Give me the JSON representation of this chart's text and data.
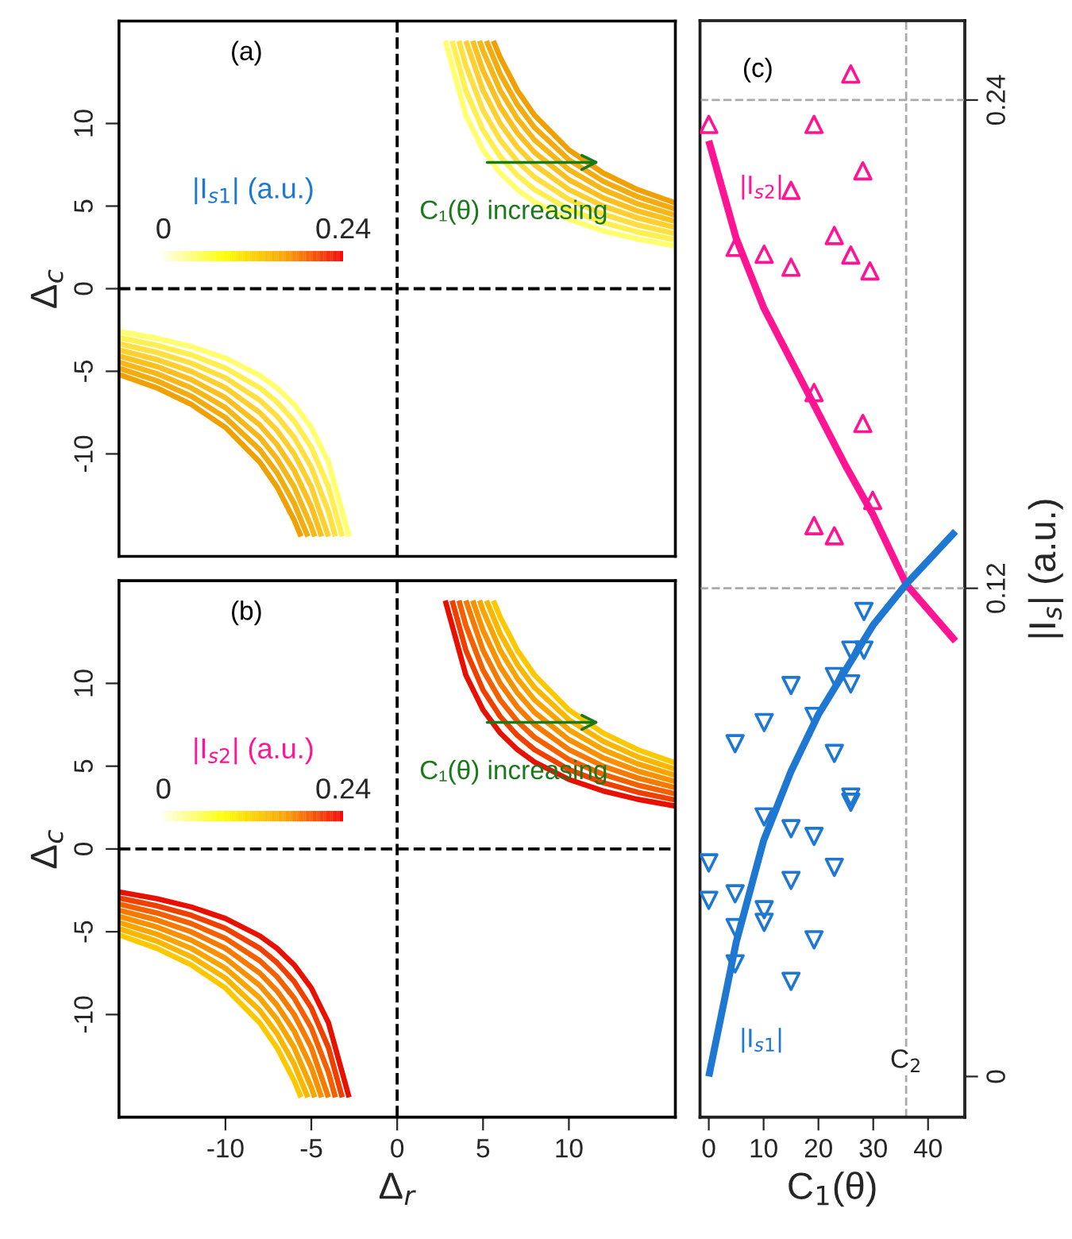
{
  "chart_data": [
    {
      "type": "line",
      "ylabel": "Δ$_{c}$",
      "xlim": [
        -16.2,
        16.2
      ],
      "ylim": [
        -16.2,
        16.2
      ],
      "yticks": [
        -10,
        -5,
        0,
        5,
        10
      ],
      "tick_labels": "y",
      "grid": false,
      "legend": false,
      "clabel": "|I$_{s1}$| (a.u.)",
      "clim": [
        0,
        0.24
      ],
      "cticks": [
        0,
        0.24
      ],
      "annotations": [
        "(a)",
        "C₁(θ) increasing"
      ],
      "ref_lines": [
        {
          "axis": "x",
          "value": 0,
          "color": "#000000",
          "line_style": "dashed"
        },
        {
          "axis": "y",
          "value": 0,
          "color": "#000000",
          "line_style": "dashed"
        }
      ],
      "series": [
        {
          "color": "#ffff70",
          "x": [
            2.8,
            4,
            5,
            6,
            7,
            8,
            10,
            12,
            14,
            16.2
          ],
          "values": [
            15,
            10.5,
            8.4,
            7,
            6,
            5.25,
            4.2,
            3.5,
            3,
            2.59
          ]
        },
        {
          "color": "#fff050",
          "x": [
            3.2,
            4,
            5,
            6,
            7,
            8,
            10,
            12,
            14,
            16.2
          ],
          "values": [
            15,
            12,
            9.6,
            8,
            6.86,
            6,
            4.8,
            4,
            3.43,
            2.96
          ]
        },
        {
          "color": "#ffe040",
          "x": [
            3.6,
            4,
            5,
            6,
            7,
            8,
            10,
            12,
            14,
            16.2
          ],
          "values": [
            15,
            13.5,
            10.8,
            9,
            7.71,
            6.75,
            5.4,
            4.5,
            3.86,
            3.33
          ]
        },
        {
          "color": "#fdd030",
          "x": [
            4,
            5,
            6,
            7,
            8,
            10,
            12,
            14,
            16.2
          ],
          "values": [
            15,
            12,
            10,
            8.57,
            7.5,
            6,
            5,
            4.29,
            3.7
          ]
        },
        {
          "color": "#f9c020",
          "x": [
            4.4,
            5,
            6,
            7,
            8,
            10,
            12,
            14,
            16.2
          ],
          "values": [
            15,
            13.2,
            11,
            9.43,
            8.25,
            6.6,
            5.5,
            4.71,
            4.07
          ]
        },
        {
          "color": "#f6b818",
          "x": [
            4.8,
            5,
            6,
            7,
            8,
            10,
            12,
            14,
            16.2
          ],
          "values": [
            15,
            14.4,
            12,
            10.29,
            9,
            7.2,
            6,
            5.14,
            4.44
          ]
        },
        {
          "color": "#f3ac10",
          "x": [
            5.2,
            6,
            7,
            8,
            10,
            12,
            14,
            16.2
          ],
          "values": [
            15,
            13,
            11.14,
            9.75,
            7.8,
            6.5,
            5.57,
            4.81
          ]
        },
        {
          "color": "#f0a000",
          "x": [
            5.6,
            6,
            7,
            8,
            10,
            12,
            14,
            16.2
          ],
          "values": [
            15,
            14,
            12,
            10.5,
            8.4,
            7,
            6,
            5.19
          ]
        },
        {
          "color": "#ffff70",
          "x": [
            -2.8,
            -4,
            -5,
            -6,
            -7,
            -8,
            -10,
            -12,
            -14,
            -16.2
          ],
          "values": [
            -15,
            -10.5,
            -8.4,
            -7,
            -6,
            -5.25,
            -4.2,
            -3.5,
            -3,
            -2.59
          ]
        },
        {
          "color": "#fff050",
          "x": [
            -3.2,
            -4,
            -5,
            -6,
            -7,
            -8,
            -10,
            -12,
            -14,
            -16.2
          ],
          "values": [
            -15,
            -12,
            -9.6,
            -8,
            -6.86,
            -6,
            -4.8,
            -4,
            -3.43,
            -2.96
          ]
        },
        {
          "color": "#ffe040",
          "x": [
            -3.6,
            -4,
            -5,
            -6,
            -7,
            -8,
            -10,
            -12,
            -14,
            -16.2
          ],
          "values": [
            -15,
            -13.5,
            -10.8,
            -9,
            -7.71,
            -6.75,
            -5.4,
            -4.5,
            -3.86,
            -3.33
          ]
        },
        {
          "color": "#fdd030",
          "x": [
            -4,
            -5,
            -6,
            -7,
            -8,
            -10,
            -12,
            -14,
            -16.2
          ],
          "values": [
            -15,
            -12,
            -10,
            -8.57,
            -7.5,
            -6,
            -5,
            -4.29,
            -3.7
          ]
        },
        {
          "color": "#f9c020",
          "x": [
            -4.4,
            -5,
            -6,
            -7,
            -8,
            -10,
            -12,
            -14,
            -16.2
          ],
          "values": [
            -15,
            -13.2,
            -11,
            -9.43,
            -8.25,
            -6.6,
            -5.5,
            -4.71,
            -4.07
          ]
        },
        {
          "color": "#f6b818",
          "x": [
            -4.8,
            -5,
            -6,
            -7,
            -8,
            -10,
            -12,
            -14,
            -16.2
          ],
          "values": [
            -15,
            -14.4,
            -12,
            -10.29,
            -9,
            -7.2,
            -6,
            -5.14,
            -4.44
          ]
        },
        {
          "color": "#f3ac10",
          "x": [
            -5.2,
            -6,
            -7,
            -8,
            -10,
            -12,
            -14,
            -16.2
          ],
          "values": [
            -15,
            -13,
            -11.14,
            -9.75,
            -7.8,
            -6.5,
            -5.57,
            -4.81
          ]
        },
        {
          "color": "#f0a000",
          "x": [
            -5.6,
            -6,
            -7,
            -8,
            -10,
            -12,
            -14,
            -16.2
          ],
          "values": [
            -15,
            -14,
            -12,
            -10.5,
            -8.4,
            -7,
            -6,
            -5.19
          ]
        }
      ]
    },
    {
      "type": "line",
      "xlabel": "Δ$_{r}$",
      "ylabel": "Δ$_{c}$",
      "xlim": [
        -16.2,
        16.2
      ],
      "ylim": [
        -16.2,
        16.2
      ],
      "xticks": [
        -10,
        -5,
        0,
        5,
        10
      ],
      "yticks": [
        -10,
        -5,
        0,
        5,
        10
      ],
      "grid": false,
      "legend": false,
      "clabel": "|I$_{s2}$| (a.u.)",
      "clim": [
        0,
        0.24
      ],
      "cticks": [
        0,
        0.24
      ],
      "annotations": [
        "(b)",
        "C₁(θ) increasing"
      ],
      "ref_lines": [
        {
          "axis": "x",
          "value": 0,
          "color": "#000000",
          "line_style": "dashed"
        },
        {
          "axis": "y",
          "value": 0,
          "color": "#000000",
          "line_style": "dashed"
        }
      ],
      "series": [
        {
          "color": "#e81000",
          "x": [
            2.8,
            4,
            5,
            6,
            7,
            8,
            10,
            12,
            14,
            16.2
          ],
          "values": [
            15,
            10.5,
            8.4,
            7,
            6,
            5.25,
            4.2,
            3.5,
            3,
            2.59
          ]
        },
        {
          "color": "#f04000",
          "x": [
            3.2,
            4,
            5,
            6,
            7,
            8,
            10,
            12,
            14,
            16.2
          ],
          "values": [
            15,
            12,
            9.6,
            8,
            6.86,
            6,
            4.8,
            4,
            3.43,
            2.96
          ]
        },
        {
          "color": "#f46000",
          "x": [
            3.6,
            4,
            5,
            6,
            7,
            8,
            10,
            12,
            14,
            16.2
          ],
          "values": [
            15,
            13.5,
            10.8,
            9,
            7.71,
            6.75,
            5.4,
            4.5,
            3.86,
            3.33
          ]
        },
        {
          "color": "#f67a00",
          "x": [
            4,
            5,
            6,
            7,
            8,
            10,
            12,
            14,
            16.2
          ],
          "values": [
            15,
            12,
            10,
            8.57,
            7.5,
            6,
            5,
            4.29,
            3.7
          ]
        },
        {
          "color": "#f89000",
          "x": [
            4.4,
            5,
            6,
            7,
            8,
            10,
            12,
            14,
            16.2
          ],
          "values": [
            15,
            13.2,
            11,
            9.43,
            8.25,
            6.6,
            5.5,
            4.71,
            4.07
          ]
        },
        {
          "color": "#faa400",
          "x": [
            4.8,
            5,
            6,
            7,
            8,
            10,
            12,
            14,
            16.2
          ],
          "values": [
            15,
            14.4,
            12,
            10.29,
            9,
            7.2,
            6,
            5.14,
            4.44
          ]
        },
        {
          "color": "#fbb600",
          "x": [
            5.2,
            6,
            7,
            8,
            10,
            12,
            14,
            16.2
          ],
          "values": [
            15,
            13,
            11.14,
            9.75,
            7.8,
            6.5,
            5.57,
            4.81
          ]
        },
        {
          "color": "#fcc800",
          "x": [
            5.6,
            6,
            7,
            8,
            10,
            12,
            14,
            16.2
          ],
          "values": [
            15,
            14,
            12,
            10.5,
            8.4,
            7,
            6,
            5.19
          ]
        },
        {
          "color": "#e81000",
          "x": [
            -2.8,
            -4,
            -5,
            -6,
            -7,
            -8,
            -10,
            -12,
            -14,
            -16.2
          ],
          "values": [
            -15,
            -10.5,
            -8.4,
            -7,
            -6,
            -5.25,
            -4.2,
            -3.5,
            -3,
            -2.59
          ]
        },
        {
          "color": "#f04000",
          "x": [
            -3.2,
            -4,
            -5,
            -6,
            -7,
            -8,
            -10,
            -12,
            -14,
            -16.2
          ],
          "values": [
            -15,
            -12,
            -9.6,
            -8,
            -6.86,
            -6,
            -4.8,
            -4,
            -3.43,
            -2.96
          ]
        },
        {
          "color": "#f46000",
          "x": [
            -3.6,
            -4,
            -5,
            -6,
            -7,
            -8,
            -10,
            -12,
            -14,
            -16.2
          ],
          "values": [
            -15,
            -13.5,
            -10.8,
            -9,
            -7.71,
            -6.75,
            -5.4,
            -4.5,
            -3.86,
            -3.33
          ]
        },
        {
          "color": "#f67a00",
          "x": [
            -4,
            -5,
            -6,
            -7,
            -8,
            -10,
            -12,
            -14,
            -16.2
          ],
          "values": [
            -15,
            -12,
            -10,
            -8.57,
            -7.5,
            -6,
            -5,
            -4.29,
            -3.7
          ]
        },
        {
          "color": "#f89000",
          "x": [
            -4.4,
            -5,
            -6,
            -7,
            -8,
            -10,
            -12,
            -14,
            -16.2
          ],
          "values": [
            -15,
            -13.2,
            -11,
            -9.43,
            -8.25,
            -6.6,
            -5.5,
            -4.71,
            -4.07
          ]
        },
        {
          "color": "#faa400",
          "x": [
            -4.8,
            -5,
            -6,
            -7,
            -8,
            -10,
            -12,
            -14,
            -16.2
          ],
          "values": [
            -15,
            -14.4,
            -12,
            -10.29,
            -9,
            -7.2,
            -6,
            -5.14,
            -4.44
          ]
        },
        {
          "color": "#fbb600",
          "x": [
            -5.2,
            -6,
            -7,
            -8,
            -10,
            -12,
            -14,
            -16.2
          ],
          "values": [
            -15,
            -13,
            -11.14,
            -9.75,
            -7.8,
            -6.5,
            -5.57,
            -4.81
          ]
        },
        {
          "color": "#fcc800",
          "x": [
            -5.6,
            -6,
            -7,
            -8,
            -10,
            -12,
            -14,
            -16.2
          ],
          "values": [
            -15,
            -14,
            -12,
            -10.5,
            -8.4,
            -7,
            -6,
            -5.19
          ]
        }
      ]
    },
    {
      "type": "scatter",
      "xlabel": "C$_{1}$(θ)",
      "y2label": "|I$_{s}$| (a.u.)",
      "xlim": [
        -1.6,
        46.7
      ],
      "xticks": [
        0,
        10,
        20,
        30,
        40
      ],
      "y2lim": [
        -0.01,
        0.2595
      ],
      "y2ticks": [
        0,
        0.12,
        0.24
      ],
      "grid": false,
      "legend": false,
      "annotations": [
        "(c)",
        "|I$_{s2}$|",
        "|I$_{s1}$|"
      ],
      "ref_lines": [
        {
          "axis": "y2",
          "value": 0.24,
          "color": "#aaaaaa",
          "line_style": "dashed"
        },
        {
          "axis": "y2",
          "value": 0.12,
          "color": "#aaaaaa",
          "line_style": "dashed"
        },
        {
          "axis": "x",
          "value": 36,
          "label": "C$_{2}$",
          "color": "#aaaaaa",
          "line_style": "dashed"
        }
      ],
      "series": [
        {
          "type": "scatter",
          "axis": "y2",
          "marker": "triangle",
          "color": "#ff1493",
          "x": [
            25.9,
            0,
            19.2,
            28.1,
            15.0,
            22.9,
            4.8,
            10.1,
            25.9,
            15.0,
            29.4,
            19.2,
            28.1,
            29.9,
            19.2,
            22.9
          ],
          "values": [
            0.2464,
            0.234,
            0.234,
            0.2226,
            0.2178,
            0.2067,
            0.2038,
            0.2021,
            0.2019,
            0.1989,
            0.198,
            0.1681,
            0.1605,
            0.1416,
            0.1354,
            0.1329
          ]
        },
        {
          "type": "line",
          "axis": "y2",
          "color": "#ff1493",
          "x": [
            0,
            5,
            10,
            15,
            20,
            25,
            30,
            36,
            45
          ],
          "values": [
            0.23,
            0.206,
            0.189,
            0.176,
            0.163,
            0.15,
            0.138,
            0.121,
            0.107
          ]
        },
        {
          "type": "scatter",
          "axis": "y2",
          "marker": "triangle-down",
          "color": "#1e78d2",
          "x": [
            28.3,
            25.9,
            28.3,
            22.9,
            15.0,
            25.9,
            10.1,
            19.2,
            4.8,
            22.9,
            25.9,
            25.9,
            10.1,
            15.0,
            19.2,
            0,
            22.9,
            15.0,
            4.8,
            0,
            10.1,
            10.1,
            4.8,
            19.2,
            4.8,
            15.0
          ],
          "values": [
            0.1143,
            0.1048,
            0.1048,
            0.0983,
            0.0961,
            0.0965,
            0.087,
            0.0885,
            0.0818,
            0.0794,
            0.0687,
            0.0674,
            0.0638,
            0.0609,
            0.059,
            0.0525,
            0.0514,
            0.0482,
            0.0449,
            0.0433,
            0.041,
            0.0379,
            0.0366,
            0.0336,
            0.0277,
            0.0234
          ]
        },
        {
          "type": "line",
          "axis": "y2",
          "color": "#1e78d2",
          "x": [
            0,
            5,
            10,
            15,
            20,
            25,
            30,
            36,
            45
          ],
          "values": [
            0,
            0.033,
            0.058,
            0.075,
            0.089,
            0.1,
            0.111,
            0.121,
            0.134
          ]
        }
      ]
    }
  ]
}
